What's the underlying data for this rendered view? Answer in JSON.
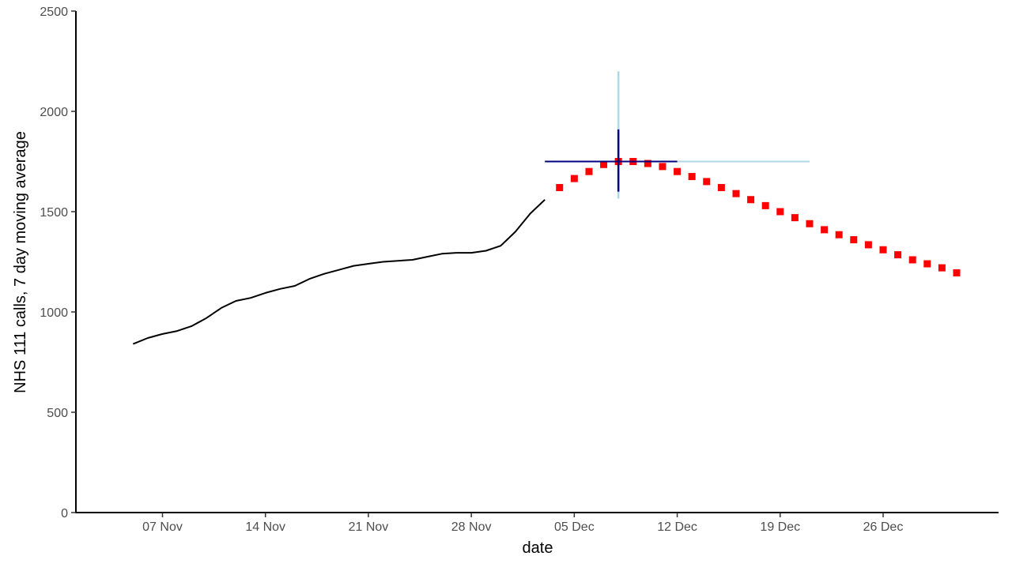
{
  "chart_data": {
    "type": "line",
    "title": "",
    "xlabel": "date",
    "ylabel": "NHS 111 calls, 7 day moving average",
    "x_type": "date",
    "xlim": [
      "2021-11-02",
      "2021-12-31"
    ],
    "ylim": [
      0,
      2500
    ],
    "x_ticks": [
      {
        "date": "2021-11-07",
        "label": "07 Nov"
      },
      {
        "date": "2021-11-14",
        "label": "14 Nov"
      },
      {
        "date": "2021-11-21",
        "label": "21 Nov"
      },
      {
        "date": "2021-11-28",
        "label": "28 Nov"
      },
      {
        "date": "2021-12-05",
        "label": "05 Dec"
      },
      {
        "date": "2021-12-12",
        "label": "12 Dec"
      },
      {
        "date": "2021-12-19",
        "label": "19 Dec"
      },
      {
        "date": "2021-12-26",
        "label": "26 Dec"
      }
    ],
    "y_ticks": [
      {
        "value": 0,
        "label": "0"
      },
      {
        "value": 500,
        "label": "500"
      },
      {
        "value": 1000,
        "label": "1000"
      },
      {
        "value": 1500,
        "label": "1500"
      },
      {
        "value": 2000,
        "label": "2000"
      },
      {
        "value": 2500,
        "label": "2500"
      }
    ],
    "grid": false,
    "legend": "none",
    "series": [
      {
        "style": "line",
        "color": "#000000",
        "points": [
          [
            "2021-11-05",
            840
          ],
          [
            "2021-11-06",
            870
          ],
          [
            "2021-11-07",
            890
          ],
          [
            "2021-11-08",
            905
          ],
          [
            "2021-11-09",
            930
          ],
          [
            "2021-11-10",
            970
          ],
          [
            "2021-11-11",
            1020
          ],
          [
            "2021-11-12",
            1055
          ],
          [
            "2021-11-13",
            1070
          ],
          [
            "2021-11-14",
            1095
          ],
          [
            "2021-11-15",
            1115
          ],
          [
            "2021-11-16",
            1130
          ],
          [
            "2021-11-17",
            1165
          ],
          [
            "2021-11-18",
            1190
          ],
          [
            "2021-11-19",
            1210
          ],
          [
            "2021-11-20",
            1230
          ],
          [
            "2021-11-21",
            1240
          ],
          [
            "2021-11-22",
            1250
          ],
          [
            "2021-11-23",
            1255
          ],
          [
            "2021-11-24",
            1260
          ],
          [
            "2021-11-25",
            1275
          ],
          [
            "2021-11-26",
            1290
          ],
          [
            "2021-11-27",
            1295
          ],
          [
            "2021-11-28",
            1295
          ],
          [
            "2021-11-29",
            1305
          ],
          [
            "2021-11-30",
            1330
          ],
          [
            "2021-12-01",
            1400
          ],
          [
            "2021-12-02",
            1490
          ],
          [
            "2021-12-03",
            1560
          ]
        ]
      },
      {
        "style": "square-markers",
        "color": "#ff0000",
        "points": [
          [
            "2021-12-04",
            1620
          ],
          [
            "2021-12-05",
            1665
          ],
          [
            "2021-12-06",
            1700
          ],
          [
            "2021-12-07",
            1735
          ],
          [
            "2021-12-08",
            1750
          ],
          [
            "2021-12-09",
            1750
          ],
          [
            "2021-12-10",
            1740
          ],
          [
            "2021-12-11",
            1725
          ],
          [
            "2021-12-12",
            1700
          ],
          [
            "2021-12-13",
            1675
          ],
          [
            "2021-12-14",
            1650
          ],
          [
            "2021-12-15",
            1620
          ],
          [
            "2021-12-16",
            1590
          ],
          [
            "2021-12-17",
            1560
          ],
          [
            "2021-12-18",
            1530
          ],
          [
            "2021-12-19",
            1500
          ],
          [
            "2021-12-20",
            1470
          ],
          [
            "2021-12-21",
            1440
          ],
          [
            "2021-12-22",
            1410
          ],
          [
            "2021-12-23",
            1385
          ],
          [
            "2021-12-24",
            1360
          ],
          [
            "2021-12-25",
            1335
          ],
          [
            "2021-12-26",
            1310
          ],
          [
            "2021-12-27",
            1285
          ],
          [
            "2021-12-28",
            1260
          ],
          [
            "2021-12-29",
            1240
          ],
          [
            "2021-12-30",
            1220
          ],
          [
            "2021-12-31",
            1195
          ]
        ]
      }
    ],
    "peak_estimate": {
      "date": "2021-12-08",
      "value": 1750,
      "inner_interval": {
        "color": "#00007f",
        "x": [
          "2021-12-03",
          "2021-12-12"
        ],
        "y": [
          1600,
          1910
        ]
      },
      "outer_interval": {
        "color": "#add8e6",
        "x": [
          "2021-12-08",
          "2021-12-21"
        ],
        "y": [
          1565,
          2200
        ]
      }
    }
  }
}
